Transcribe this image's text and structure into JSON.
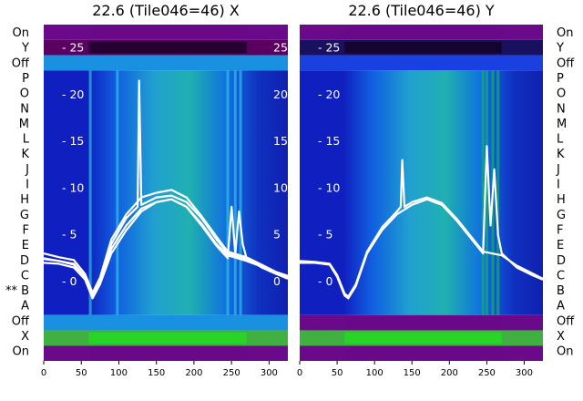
{
  "chart_data": [
    {
      "type": "line",
      "title": "22.6 (Tile046=46) X",
      "x_ticks": [
        0,
        50,
        100,
        150,
        200,
        250,
        300
      ],
      "xlim": [
        0,
        325
      ],
      "y_ticks": [
        0,
        5,
        10,
        15,
        20,
        25
      ],
      "ylim": [
        -8.5,
        27.5
      ],
      "row_labels_left": [
        "On",
        "Y",
        "Off",
        "P",
        "O",
        "N",
        "M",
        "L",
        "K",
        "J",
        "I",
        "H",
        "G",
        "F",
        "E",
        "D",
        "C",
        "** B",
        "A",
        "Off",
        "X",
        "On"
      ],
      "heatmap_bands": [
        {
          "rows": [
            0,
            0
          ],
          "color": "#6a0a8a"
        },
        {
          "rows": [
            1,
            1
          ],
          "color": "#5a0060"
        },
        {
          "rows": [
            2,
            2
          ],
          "color": "#1a90e0"
        },
        {
          "rows": [
            3,
            18
          ],
          "color": "#1020c0"
        },
        {
          "rows": [
            19,
            19
          ],
          "color": "#1a90e0"
        },
        {
          "rows": [
            20,
            20
          ],
          "color": "#40b040"
        },
        {
          "rows": [
            21,
            21
          ],
          "color": "#6a0a8a"
        }
      ],
      "series": [
        {
          "x": [
            0,
            20,
            40,
            55,
            65,
            75,
            90,
            110,
            130,
            150,
            170,
            190,
            210,
            230,
            245,
            250,
            255,
            260,
            265,
            270,
            290,
            310,
            325
          ],
          "y": [
            2.5,
            2.2,
            1.8,
            0.5,
            -1.5,
            0,
            3.5,
            6.0,
            7.8,
            8.5,
            8.8,
            8.0,
            6.0,
            3.8,
            2.5,
            8.0,
            3.0,
            7.5,
            4.0,
            2.5,
            1.5,
            0.8,
            0.3
          ]
        },
        {
          "x": [
            0,
            20,
            40,
            55,
            65,
            75,
            90,
            110,
            130,
            150,
            170,
            190,
            210,
            230,
            245,
            270,
            290,
            310,
            325
          ],
          "y": [
            2.0,
            1.9,
            1.5,
            0.2,
            -1.8,
            -0.3,
            3.0,
            5.5,
            7.5,
            8.5,
            8.8,
            8.0,
            6.2,
            4.0,
            2.8,
            2.2,
            1.6,
            0.9,
            0.5
          ]
        },
        {
          "x": [
            0,
            20,
            40,
            55,
            65,
            75,
            90,
            110,
            130,
            150,
            170,
            190,
            210,
            230,
            245,
            270,
            290,
            310,
            325
          ],
          "y": [
            3.0,
            2.6,
            2.3,
            0.8,
            -1.2,
            0.4,
            4.5,
            7.2,
            9.0,
            9.5,
            9.8,
            9.0,
            7.0,
            4.8,
            3.2,
            2.6,
            1.8,
            1.0,
            0.6
          ]
        },
        {
          "x": [
            0,
            20,
            40,
            55,
            65,
            75,
            90,
            110,
            125,
            127,
            130,
            150,
            170,
            190,
            210,
            230,
            245,
            270,
            290,
            310,
            325
          ],
          "y": [
            2.4,
            2.2,
            1.9,
            0.5,
            -1.5,
            0.2,
            4.0,
            6.8,
            8.0,
            21.5,
            8.2,
            9.0,
            9.2,
            8.5,
            6.8,
            4.5,
            3.0,
            2.4,
            1.7,
            0.9,
            0.4
          ]
        }
      ]
    },
    {
      "type": "line",
      "title": "22.6 (Tile046=46) Y",
      "x_ticks": [
        0,
        50,
        100,
        150,
        200,
        250,
        300
      ],
      "xlim": [
        0,
        325
      ],
      "y_ticks": [
        0,
        5,
        10,
        15,
        20,
        25
      ],
      "ylim": [
        -8.5,
        27.5
      ],
      "row_labels_right": [
        "On",
        "Y",
        "Off",
        "P",
        "O",
        "N",
        "M",
        "L",
        "K",
        "J",
        "I",
        "H",
        "G",
        "F",
        "E",
        "D",
        "C",
        "B",
        "A",
        "Off",
        "X",
        "On"
      ],
      "heatmap_bands": [
        {
          "rows": [
            0,
            0
          ],
          "color": "#6a0a8a"
        },
        {
          "rows": [
            1,
            1
          ],
          "color": "#1a1060"
        },
        {
          "rows": [
            2,
            2
          ],
          "color": "#1a40e0"
        },
        {
          "rows": [
            3,
            18
          ],
          "color": "#1020c0"
        },
        {
          "rows": [
            19,
            19
          ],
          "color": "#6a0a8a"
        },
        {
          "rows": [
            20,
            20
          ],
          "color": "#40b040"
        },
        {
          "rows": [
            21,
            21
          ],
          "color": "#6a0a8a"
        }
      ],
      "series": [
        {
          "x": [
            0,
            20,
            40,
            50,
            60,
            65,
            75,
            90,
            110,
            130,
            150,
            170,
            190,
            210,
            230,
            245,
            250,
            255,
            260,
            265,
            270,
            290,
            310,
            325
          ],
          "y": [
            2.0,
            2.0,
            1.8,
            0.5,
            -1.5,
            -1.8,
            -0.5,
            3.0,
            5.5,
            7.2,
            8.2,
            8.8,
            8.2,
            6.5,
            4.5,
            3.0,
            14.5,
            6.0,
            12.0,
            5.0,
            3.0,
            1.5,
            0.7,
            0.2
          ]
        },
        {
          "x": [
            0,
            20,
            40,
            50,
            60,
            65,
            75,
            90,
            110,
            130,
            135,
            137,
            140,
            150,
            170,
            190,
            210,
            230,
            245,
            270,
            290,
            310,
            325
          ],
          "y": [
            2.2,
            2.1,
            1.9,
            0.7,
            -1.3,
            -1.6,
            -0.3,
            3.2,
            5.8,
            7.5,
            8.0,
            13.0,
            8.0,
            8.5,
            9.0,
            8.4,
            6.7,
            4.7,
            3.2,
            2.8,
            1.7,
            0.9,
            0.3
          ]
        }
      ]
    }
  ]
}
